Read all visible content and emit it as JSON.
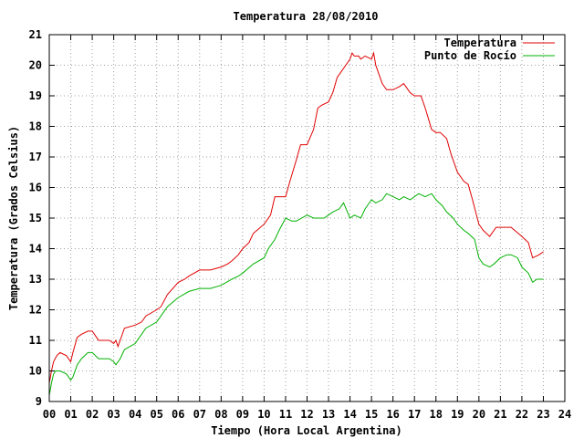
{
  "chart_data": {
    "type": "line",
    "title": "Temperatura 28/08/2010",
    "xlabel": "Tiempo (Hora Local Argentina)",
    "ylabel": "Temperatura (Grados Celsius)",
    "xlim": [
      0,
      24
    ],
    "ylim": [
      9,
      21
    ],
    "xticks": [
      "00",
      "01",
      "02",
      "03",
      "04",
      "05",
      "06",
      "07",
      "08",
      "09",
      "10",
      "11",
      "12",
      "13",
      "14",
      "15",
      "16",
      "17",
      "18",
      "19",
      "20",
      "21",
      "22",
      "23",
      "24"
    ],
    "yticks": [
      9,
      10,
      11,
      12,
      13,
      14,
      15,
      16,
      17,
      18,
      19,
      20,
      21
    ],
    "grid": true,
    "legend_position": "top-right",
    "series": [
      {
        "name": "Temperatura",
        "color": "#e00000",
        "x": [
          0.0,
          0.1,
          0.2,
          0.35,
          0.5,
          0.8,
          1.0,
          1.1,
          1.3,
          1.5,
          1.8,
          2.0,
          2.2,
          2.3,
          2.5,
          2.8,
          3.0,
          3.1,
          3.2,
          3.3,
          3.5,
          4.0,
          4.3,
          4.5,
          5.0,
          5.2,
          5.5,
          6.0,
          6.3,
          6.5,
          7.0,
          7.5,
          8.0,
          8.3,
          8.5,
          8.8,
          9.0,
          9.3,
          9.5,
          10.0,
          10.3,
          10.5,
          11.0,
          11.2,
          11.5,
          11.7,
          12.0,
          12.3,
          12.5,
          12.7,
          13.0,
          13.2,
          13.4,
          13.6,
          13.8,
          14.0,
          14.1,
          14.2,
          14.4,
          14.5,
          14.7,
          15.0,
          15.1,
          15.2,
          15.5,
          15.7,
          16.0,
          16.3,
          16.5,
          16.8,
          17.0,
          17.1,
          17.3,
          17.5,
          17.8,
          18.0,
          18.2,
          18.5,
          18.7,
          19.0,
          19.3,
          19.5,
          19.7,
          20.0,
          20.2,
          20.5,
          20.8,
          21.0,
          21.5,
          22.0,
          22.3,
          22.5,
          22.8,
          23.0
        ],
        "values": [
          9.6,
          10.0,
          10.3,
          10.5,
          10.6,
          10.5,
          10.3,
          10.6,
          11.1,
          11.2,
          11.3,
          11.3,
          11.1,
          11.0,
          11.0,
          11.0,
          10.9,
          11.0,
          10.8,
          11.0,
          11.4,
          11.5,
          11.6,
          11.8,
          12.0,
          12.1,
          12.5,
          12.9,
          13.0,
          13.1,
          13.3,
          13.3,
          13.4,
          13.5,
          13.6,
          13.8,
          14.0,
          14.2,
          14.5,
          14.8,
          15.1,
          15.7,
          15.7,
          16.2,
          16.9,
          17.4,
          17.4,
          17.9,
          18.6,
          18.7,
          18.8,
          19.1,
          19.6,
          19.8,
          20.0,
          20.2,
          20.4,
          20.3,
          20.3,
          20.2,
          20.3,
          20.2,
          20.4,
          20.0,
          19.4,
          19.2,
          19.2,
          19.3,
          19.4,
          19.1,
          19.0,
          19.0,
          19.0,
          18.6,
          17.9,
          17.8,
          17.8,
          17.6,
          17.1,
          16.5,
          16.2,
          16.1,
          15.6,
          14.8,
          14.6,
          14.4,
          14.7,
          14.7,
          14.7,
          14.4,
          14.2,
          13.7,
          13.8,
          13.9
        ]
      },
      {
        "name": "Punto de Rocío",
        "color": "#00b000",
        "x": [
          0.0,
          0.1,
          0.2,
          0.3,
          0.5,
          0.8,
          1.0,
          1.1,
          1.3,
          1.5,
          1.8,
          2.0,
          2.3,
          2.5,
          2.8,
          3.0,
          3.1,
          3.3,
          3.5,
          4.0,
          4.3,
          4.5,
          5.0,
          5.2,
          5.5,
          6.0,
          6.5,
          7.0,
          7.5,
          8.0,
          8.5,
          8.8,
          9.0,
          9.5,
          10.0,
          10.2,
          10.5,
          10.7,
          11.0,
          11.3,
          11.5,
          12.0,
          12.3,
          12.5,
          12.8,
          13.0,
          13.2,
          13.5,
          13.7,
          14.0,
          14.2,
          14.5,
          14.7,
          15.0,
          15.2,
          15.5,
          15.7,
          16.0,
          16.3,
          16.5,
          16.8,
          17.0,
          17.2,
          17.5,
          17.8,
          18.0,
          18.3,
          18.5,
          18.8,
          19.0,
          19.3,
          19.5,
          19.8,
          20.0,
          20.2,
          20.5,
          20.7,
          21.0,
          21.3,
          21.5,
          21.8,
          22.0,
          22.3,
          22.5,
          22.7,
          23.0
        ],
        "values": [
          9.2,
          9.6,
          9.9,
          10.0,
          10.0,
          9.9,
          9.7,
          9.8,
          10.2,
          10.4,
          10.6,
          10.6,
          10.4,
          10.4,
          10.4,
          10.3,
          10.2,
          10.4,
          10.7,
          10.9,
          11.2,
          11.4,
          11.6,
          11.8,
          12.1,
          12.4,
          12.6,
          12.7,
          12.7,
          12.8,
          13.0,
          13.1,
          13.2,
          13.5,
          13.7,
          14.0,
          14.3,
          14.6,
          15.0,
          14.9,
          14.9,
          15.1,
          15.0,
          15.0,
          15.0,
          15.1,
          15.2,
          15.3,
          15.5,
          15.0,
          15.1,
          15.0,
          15.3,
          15.6,
          15.5,
          15.6,
          15.8,
          15.7,
          15.6,
          15.7,
          15.6,
          15.7,
          15.8,
          15.7,
          15.8,
          15.6,
          15.4,
          15.2,
          15.0,
          14.8,
          14.6,
          14.5,
          14.3,
          13.7,
          13.5,
          13.4,
          13.5,
          13.7,
          13.8,
          13.8,
          13.7,
          13.4,
          13.2,
          12.9,
          13.0,
          13.0
        ]
      }
    ]
  }
}
